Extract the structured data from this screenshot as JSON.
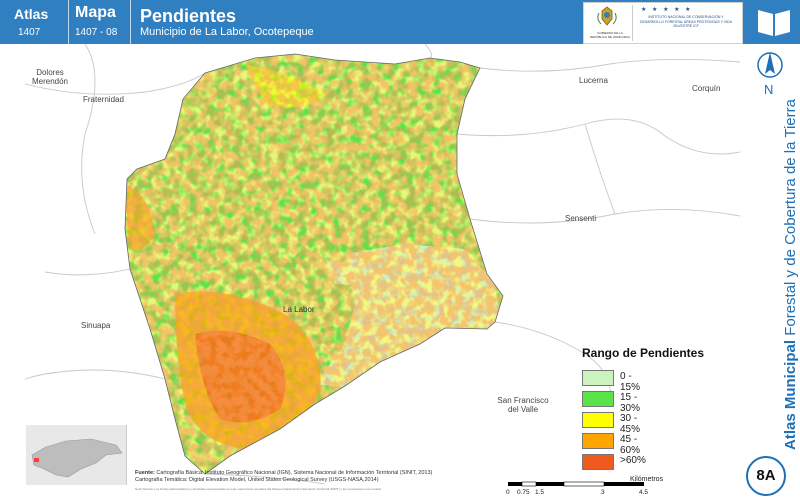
{
  "header": {
    "atlas_label": "Atlas",
    "atlas_code": "1407",
    "mapa_label": "Mapa",
    "mapa_code": "1407 - 08",
    "title": "Pendientes",
    "subtitle": "Municipio de La Labor, Ocotepeque"
  },
  "logos": {
    "left_text": "GOBIERNO DE LA REPÚBLICA DE HONDURAS",
    "right_stars": "★ ★ ★ ★ ★",
    "right_text": "INSTITUTO NACIONAL DE CONSERVACIÓN Y DESARROLLO FORESTAL ÁREAS PROTEGIDAS Y VIDA SILVESTRE ICF"
  },
  "places": [
    {
      "id": "dolores",
      "label": "Dolores Merendón"
    },
    {
      "id": "fraternidad",
      "label": "Fraternidad"
    },
    {
      "id": "lucerna",
      "label": "Lucerna"
    },
    {
      "id": "corquin",
      "label": "Corquín"
    },
    {
      "id": "sensenti",
      "label": "Sensenti"
    },
    {
      "id": "sinuapa",
      "label": "Sinuapa"
    },
    {
      "id": "lalabor",
      "label": "La Labor"
    },
    {
      "id": "sanfrancisco",
      "label": "San Francisco del Valle"
    }
  ],
  "legend": {
    "title": "Rango de Pendientes",
    "items": [
      {
        "label": "0 - 15%",
        "color": "#ccf2c0"
      },
      {
        "label": "15 - 30%",
        "color": "#5be34a"
      },
      {
        "label": "30 - 45%",
        "color": "#ffff00"
      },
      {
        "label": "45 - 60%",
        "color": "#ffa500"
      },
      {
        "label": ">60%",
        "color": "#f05a1e"
      }
    ]
  },
  "source": {
    "label": "Fuente:",
    "line1": "Cartografía Básica: Instituto Geográfico Nacional (IGN), Sistema Nacional de Información Territorial (SINIT, 2013)",
    "line2": "Cartografía Temática: Digital Elevation Model, United States Geological Survey (USGS-NASA,2014)",
    "notes": "Nota Técnica: Los límites administrativos y forestales representados en este mapa fueron tomados del Sistema Nacional de Información Territorial (SINIT) y los representan en la versión"
  },
  "scale": {
    "unit": "Kilómetros",
    "ticks": [
      "0",
      "0.75",
      "1.5",
      "3",
      "4.5"
    ]
  },
  "sidebar": {
    "north": "N",
    "vertical_bold": "Atlas Municipal",
    "vertical_rest": "Forestal y de Cobertura de la Tierra",
    "badge": "8A"
  },
  "colors": {
    "header": "#2f7fc1",
    "accent": "#1e6fb5"
  }
}
